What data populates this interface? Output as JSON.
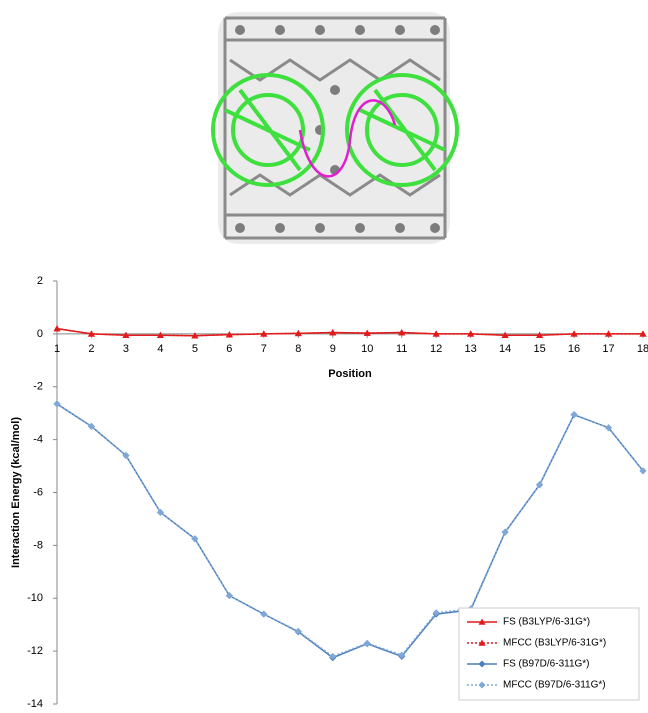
{
  "chart_data": {
    "type": "line",
    "x": [
      1,
      2,
      3,
      4,
      5,
      6,
      7,
      8,
      9,
      10,
      11,
      12,
      13,
      14,
      15,
      16,
      17,
      18
    ],
    "xlabel": "Position",
    "ylabel": "Interaction Energy (kcal/mol)",
    "xlim": [
      1,
      18
    ],
    "xticks": [
      1,
      2,
      3,
      4,
      5,
      6,
      7,
      8,
      9,
      10,
      11,
      12,
      13,
      14,
      15,
      16,
      17,
      18
    ],
    "ylim": [
      -14,
      2
    ],
    "yticks": [
      -14,
      -12,
      -10,
      -8,
      -6,
      -4,
      -2,
      0,
      2
    ],
    "grid": false,
    "legend": "lower right",
    "series": [
      {
        "name": "FS (B3LYP/6-31G*)",
        "color": "#e31a1c",
        "marker": "triangle",
        "dash": false,
        "values": [
          0.2,
          0,
          -0.05,
          -0.05,
          -0.07,
          -0.03,
          0,
          0.02,
          0.05,
          0.03,
          0.05,
          0,
          0,
          -0.05,
          -0.05,
          0,
          0,
          0
        ]
      },
      {
        "name": "MFCC (B3LYP/6-31G*)",
        "color": "#e31a1c",
        "marker": "triangle",
        "dash": true,
        "values": [
          0.2,
          0,
          -0.05,
          -0.05,
          -0.07,
          -0.03,
          0,
          0.02,
          0.05,
          0.03,
          0.05,
          0,
          0,
          -0.05,
          -0.05,
          0,
          0,
          0
        ]
      },
      {
        "name": "FS (B97D/6-311G*)",
        "color": "#4a7ebb",
        "marker": "diamond",
        "dash": false,
        "values": [
          -2.65,
          -3.5,
          -4.6,
          -6.75,
          -7.75,
          -9.9,
          -10.6,
          -11.27,
          -12.25,
          -11.72,
          -12.2,
          -10.6,
          -10.44,
          -7.5,
          -5.71,
          -3.06,
          -3.55,
          -5.18
        ]
      },
      {
        "name": "MFCC (B97D/6-311G*)",
        "color": "#7fa8d8",
        "marker": "diamond",
        "dash": true,
        "values": [
          -2.65,
          -3.5,
          -4.6,
          -6.75,
          -7.75,
          -9.9,
          -10.6,
          -11.25,
          -12.2,
          -11.7,
          -12.15,
          -10.55,
          -10.4,
          -7.5,
          -5.7,
          -3.05,
          -3.55,
          -5.18
        ]
      }
    ]
  }
}
